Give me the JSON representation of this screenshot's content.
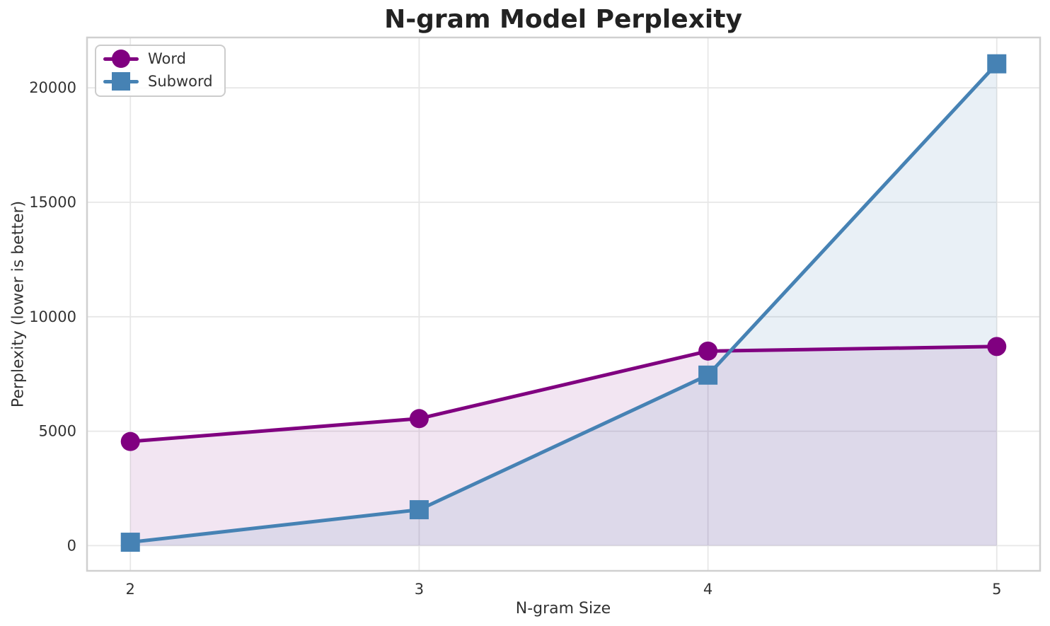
{
  "chart_data": {
    "type": "line",
    "title": "N-gram Model Perplexity",
    "xlabel": "N-gram Size",
    "ylabel": "Perplexity (lower is better)",
    "x": [
      2,
      3,
      4,
      5
    ],
    "series": [
      {
        "name": "Word",
        "values": [
          4550,
          5550,
          8500,
          8700
        ],
        "color": "#800080",
        "marker": "circle",
        "fill_to_zero": true,
        "fill_opacity": 0.1
      },
      {
        "name": "Subword",
        "values": [
          150,
          1570,
          7450,
          21050
        ],
        "color": "#4682B4",
        "marker": "square",
        "fill_to_zero": true,
        "fill_opacity": 0.12
      }
    ],
    "xlim": [
      1.85,
      5.15
    ],
    "ylim": [
      -1100,
      22200
    ],
    "xticks": [
      "2",
      "3",
      "4",
      "5"
    ],
    "xtick_values": [
      2,
      3,
      4,
      5
    ],
    "yticks": [
      "0",
      "5000",
      "10000",
      "15000",
      "20000"
    ],
    "ytick_values": [
      0,
      5000,
      10000,
      15000,
      20000
    ],
    "grid": true,
    "legend_position": "upper left",
    "colors": {
      "background": "#ffffff",
      "grid": "#e7e7e7",
      "spine": "#d0d0d0",
      "tick_text": "#333333",
      "label_text": "#333333",
      "title_text": "#222222",
      "legend_border": "#cccccc"
    }
  }
}
